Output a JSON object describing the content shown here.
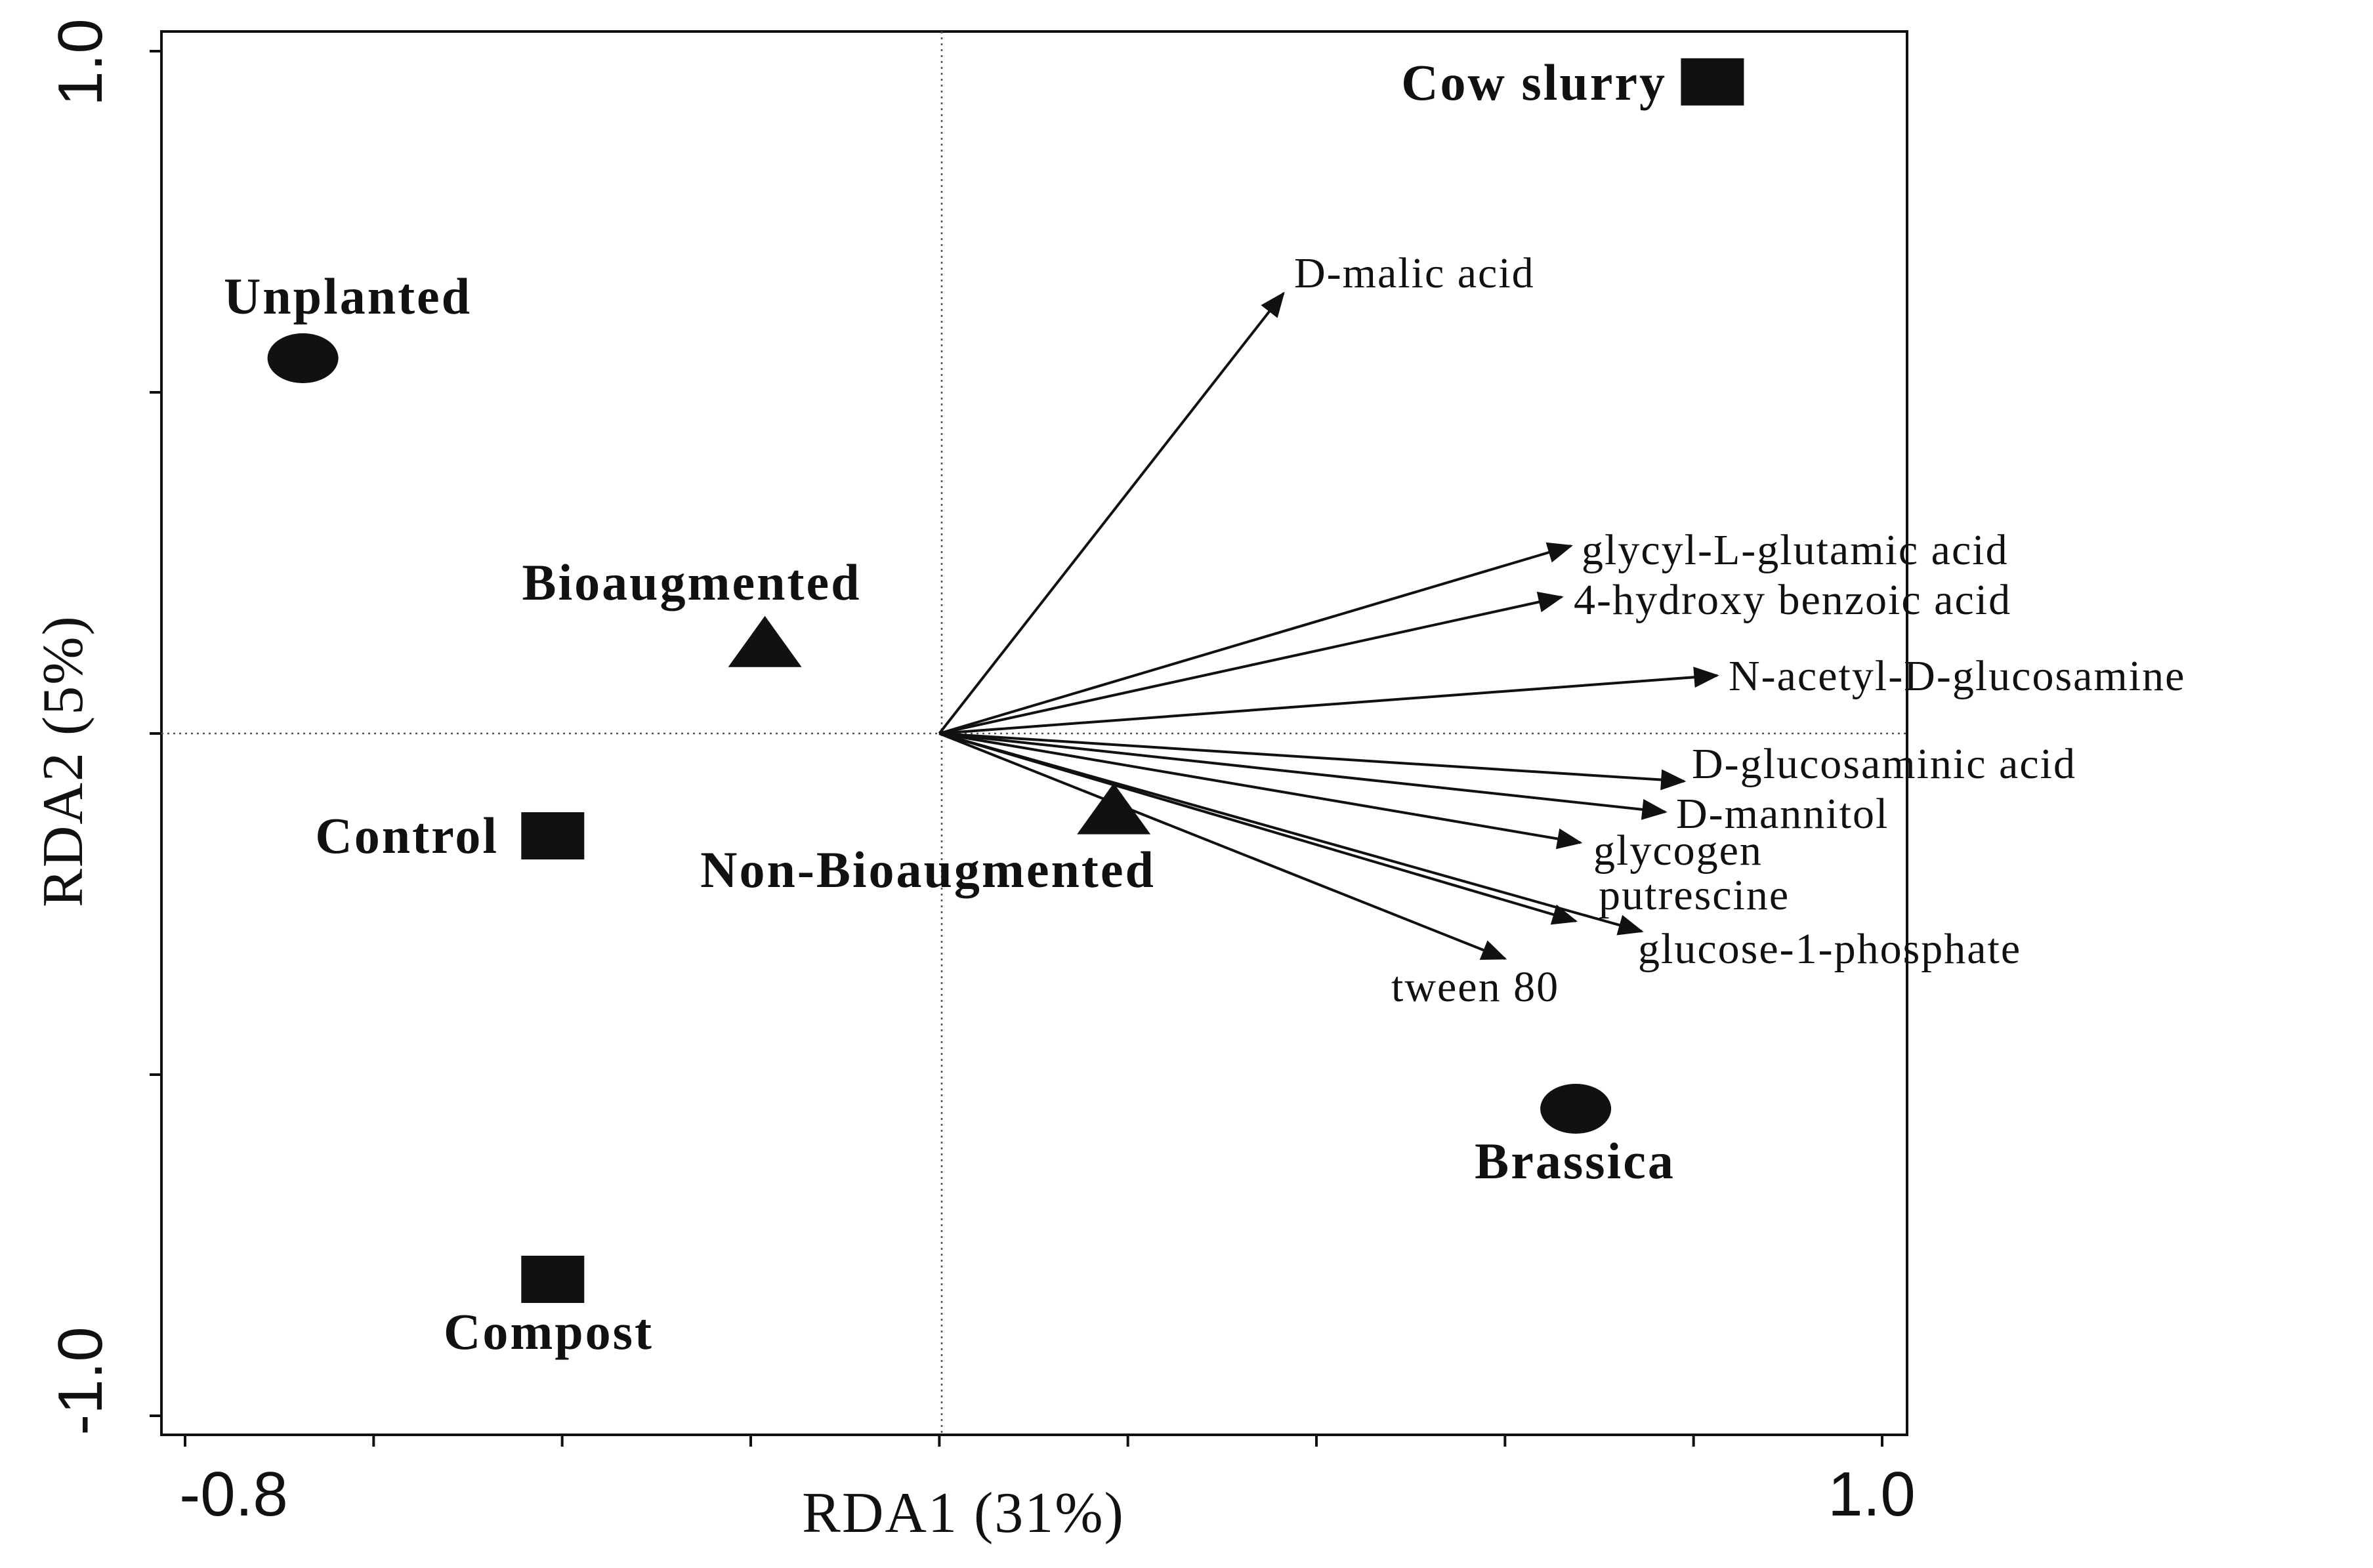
{
  "chart_data": {
    "type": "scatter",
    "subtype": "RDA biplot",
    "xlabel": "RDA1 (31%)",
    "ylabel": "RDA2 (5%)",
    "xlim": [
      -0.8,
      1.0
    ],
    "ylim": [
      -1.0,
      1.0
    ],
    "x_tick_labels": [
      {
        "value": -0.8,
        "label": "-0.8"
      },
      {
        "value": 1.0,
        "label": "1.0"
      }
    ],
    "y_tick_labels": [
      {
        "value": -1.0,
        "label": "-1.0"
      },
      {
        "value": 1.0,
        "label": "1.0"
      }
    ],
    "x_minor_ticks": [
      -0.8,
      -0.6,
      -0.4,
      -0.2,
      0.0,
      0.2,
      0.4,
      0.6,
      0.8,
      1.0
    ],
    "y_minor_ticks": [
      -1.0,
      -0.5,
      0.0,
      0.5,
      1.0
    ],
    "reference_lines": {
      "x": 0.0,
      "y": 0.0,
      "style": "dotted"
    },
    "samples": [
      {
        "name": "Cow slurry",
        "shape": "square",
        "x": 0.82,
        "y": 0.955
      },
      {
        "name": "Unplanted",
        "shape": "circle",
        "x": -0.675,
        "y": 0.55
      },
      {
        "name": "Bioaugmented",
        "shape": "triangle",
        "x": -0.185,
        "y": 0.13
      },
      {
        "name": "Control",
        "shape": "square",
        "x": -0.41,
        "y": -0.15
      },
      {
        "name": "Non-Bioaugmented",
        "shape": "triangle",
        "x": 0.185,
        "y": -0.115
      },
      {
        "name": "Brassica",
        "shape": "circle",
        "x": 0.675,
        "y": -0.55
      },
      {
        "name": "Compost",
        "shape": "square",
        "x": -0.41,
        "y": -0.8
      }
    ],
    "variables": [
      {
        "name": "D-malic acid",
        "x": 0.365,
        "y": 0.645
      },
      {
        "name": "glycyl-L-glutamic acid",
        "x": 0.67,
        "y": 0.275
      },
      {
        "name": "4-hydroxy benzoic acid",
        "x": 0.66,
        "y": 0.2
      },
      {
        "name": "N-acetyl-D-glucosamine",
        "x": 0.825,
        "y": 0.085
      },
      {
        "name": "D-glucosaminic acid",
        "x": 0.79,
        "y": -0.07
      },
      {
        "name": "D-mannitol",
        "x": 0.77,
        "y": -0.115
      },
      {
        "name": "glycogen",
        "x": 0.68,
        "y": -0.16
      },
      {
        "name": "putrescine",
        "x": 0.675,
        "y": -0.275
      },
      {
        "name": "glucose-1-phosphate",
        "x": 0.745,
        "y": -0.29
      },
      {
        "name": "tween 80",
        "x": 0.6,
        "y": -0.33
      }
    ]
  }
}
